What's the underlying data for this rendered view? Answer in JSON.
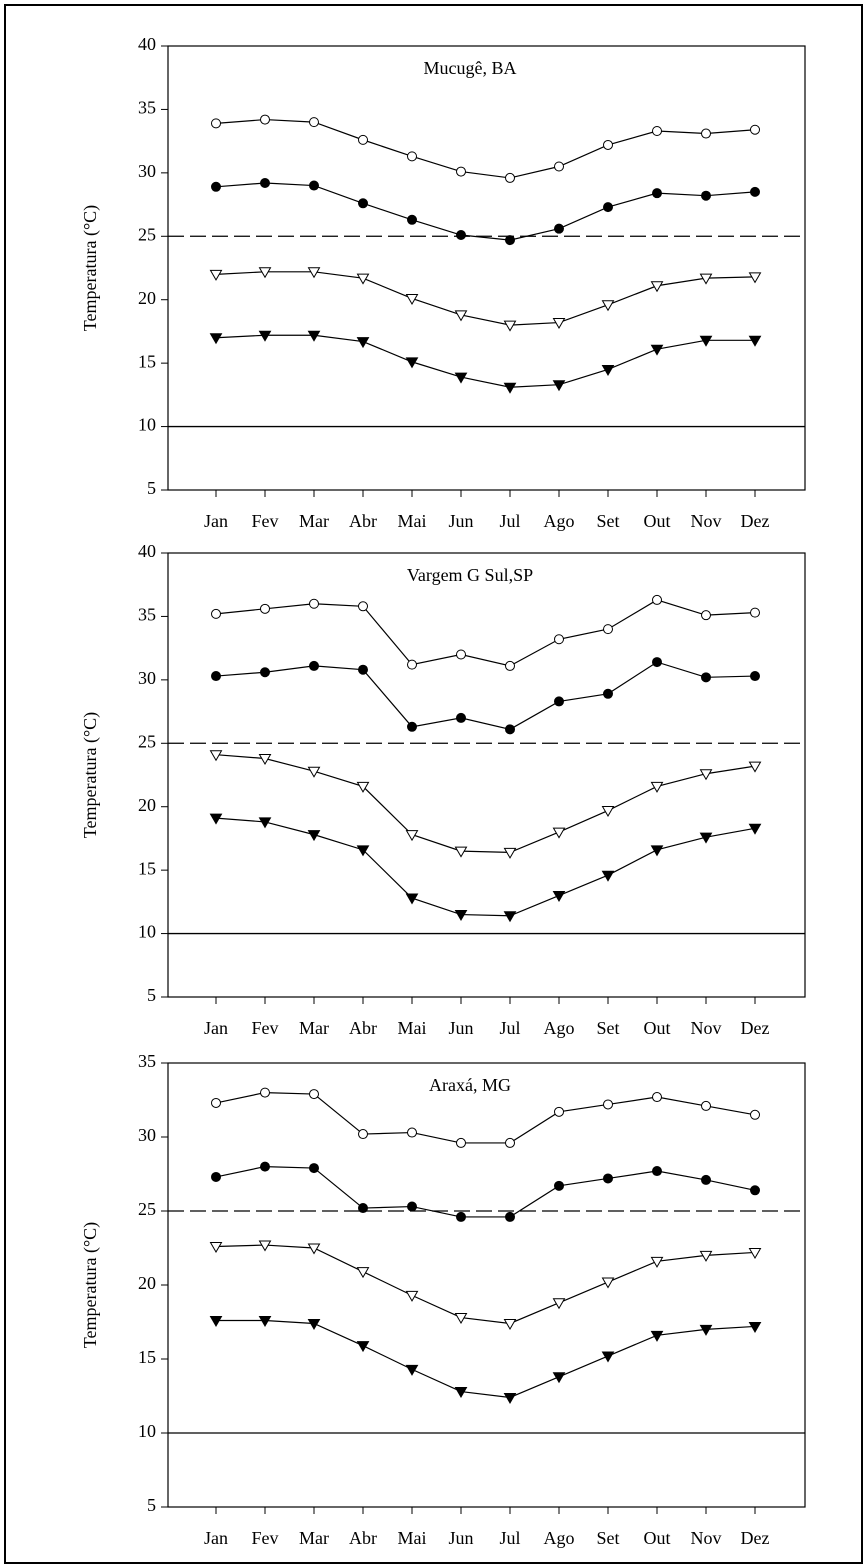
{
  "chart_data": [
    {
      "type": "line",
      "title": "Mucugê, BA",
      "y_label": "Temperatura (°C)",
      "categories": [
        "Jan",
        "Fev",
        "Mar",
        "Abr",
        "Mai",
        "Jun",
        "Jul",
        "Ago",
        "Set",
        "Out",
        "Nov",
        "Dez"
      ],
      "ylim": [
        5,
        40
      ],
      "yticks": [
        5,
        10,
        15,
        20,
        25,
        30,
        35,
        40
      ],
      "hlines": [
        {
          "value": 25,
          "style": "dashed"
        },
        {
          "value": 10,
          "style": "solid"
        }
      ],
      "series": [
        {
          "color": "#000000",
          "marker": "circle",
          "fill": "#ffffff",
          "values": [
            33.9,
            34.2,
            34.0,
            32.6,
            31.3,
            30.1,
            29.6,
            30.5,
            32.2,
            33.3,
            33.1,
            33.4
          ]
        },
        {
          "color": "#000000",
          "marker": "circle",
          "fill": "#000000",
          "values": [
            28.9,
            29.2,
            29.0,
            27.6,
            26.3,
            25.1,
            24.7,
            25.6,
            27.3,
            28.4,
            28.2,
            28.5
          ]
        },
        {
          "color": "#000000",
          "marker": "triangle-down",
          "fill": "#ffffff",
          "values": [
            22.0,
            22.2,
            22.2,
            21.7,
            20.1,
            18.8,
            18.0,
            18.2,
            19.6,
            21.1,
            21.7,
            21.8
          ]
        },
        {
          "color": "#000000",
          "marker": "triangle-down",
          "fill": "#000000",
          "values": [
            17.0,
            17.2,
            17.2,
            16.7,
            15.1,
            13.9,
            13.1,
            13.3,
            14.5,
            16.1,
            16.8,
            16.8
          ]
        }
      ]
    },
    {
      "type": "line",
      "title": "Vargem G Sul,SP",
      "y_label": "Temperatura (°C)",
      "categories": [
        "Jan",
        "Fev",
        "Mar",
        "Abr",
        "Mai",
        "Jun",
        "Jul",
        "Ago",
        "Set",
        "Out",
        "Nov",
        "Dez"
      ],
      "ylim": [
        5,
        40
      ],
      "yticks": [
        5,
        10,
        15,
        20,
        25,
        30,
        35,
        40
      ],
      "hlines": [
        {
          "value": 25,
          "style": "dashed"
        },
        {
          "value": 10,
          "style": "solid"
        }
      ],
      "series": [
        {
          "color": "#000000",
          "marker": "circle",
          "fill": "#ffffff",
          "values": [
            35.2,
            35.6,
            36.0,
            35.8,
            31.2,
            32.0,
            31.1,
            33.2,
            34.0,
            36.3,
            35.1,
            35.3
          ]
        },
        {
          "color": "#000000",
          "marker": "circle",
          "fill": "#000000",
          "values": [
            30.3,
            30.6,
            31.1,
            30.8,
            26.3,
            27.0,
            26.1,
            28.3,
            28.9,
            31.4,
            30.2,
            30.3
          ]
        },
        {
          "color": "#000000",
          "marker": "triangle-down",
          "fill": "#ffffff",
          "values": [
            24.1,
            23.8,
            22.8,
            21.6,
            17.8,
            16.5,
            16.4,
            18.0,
            19.7,
            21.6,
            22.6,
            23.2
          ]
        },
        {
          "color": "#000000",
          "marker": "triangle-down",
          "fill": "#000000",
          "values": [
            19.1,
            18.8,
            17.8,
            16.6,
            12.8,
            11.5,
            11.4,
            13.0,
            14.6,
            16.6,
            17.6,
            18.3
          ]
        }
      ]
    },
    {
      "type": "line",
      "title": "Araxá, MG",
      "y_label": "Temperatura (°C)",
      "categories": [
        "Jan",
        "Fev",
        "Mar",
        "Abr",
        "Mai",
        "Jun",
        "Jul",
        "Ago",
        "Set",
        "Out",
        "Nov",
        "Dez"
      ],
      "ylim": [
        5,
        35
      ],
      "yticks": [
        5,
        10,
        15,
        20,
        25,
        30,
        35
      ],
      "hlines": [
        {
          "value": 25,
          "style": "dashed"
        },
        {
          "value": 10,
          "style": "solid"
        }
      ],
      "series": [
        {
          "color": "#000000",
          "marker": "circle",
          "fill": "#ffffff",
          "values": [
            32.3,
            33.0,
            32.9,
            30.2,
            30.3,
            29.6,
            29.6,
            31.7,
            32.2,
            32.7,
            32.1,
            31.5
          ]
        },
        {
          "color": "#000000",
          "marker": "circle",
          "fill": "#000000",
          "values": [
            27.3,
            28.0,
            27.9,
            25.2,
            25.3,
            24.6,
            24.6,
            26.7,
            27.2,
            27.7,
            27.1,
            26.4
          ]
        },
        {
          "color": "#000000",
          "marker": "triangle-down",
          "fill": "#ffffff",
          "values": [
            22.6,
            22.7,
            22.5,
            20.9,
            19.3,
            17.8,
            17.4,
            18.8,
            20.2,
            21.6,
            22.0,
            22.2
          ]
        },
        {
          "color": "#000000",
          "marker": "triangle-down",
          "fill": "#000000",
          "values": [
            17.6,
            17.6,
            17.4,
            15.9,
            14.3,
            12.8,
            12.4,
            13.8,
            15.2,
            16.6,
            17.0,
            17.2
          ]
        }
      ]
    }
  ]
}
